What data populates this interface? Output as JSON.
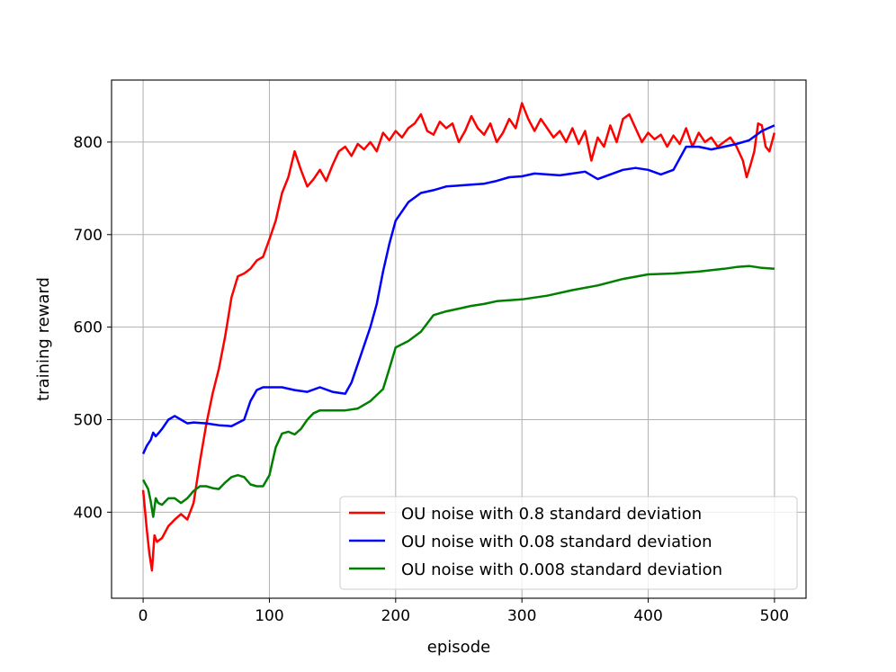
{
  "chart_data": {
    "type": "line",
    "xlabel": "episode",
    "ylabel": "training reward",
    "xlim": [
      -25,
      525
    ],
    "ylim": [
      307,
      867
    ],
    "xticks": [
      "0",
      "100",
      "200",
      "300",
      "400",
      "500"
    ],
    "yticks": [
      "400",
      "500",
      "600",
      "700",
      "800"
    ],
    "grid": true,
    "legend_position": "lower-right",
    "series": [
      {
        "name": "OU noise with 0.8 standard deviation",
        "color": "#ff0000",
        "x": [
          0,
          3,
          5,
          7,
          9,
          11,
          15,
          20,
          25,
          30,
          35,
          40,
          45,
          50,
          55,
          60,
          65,
          70,
          75,
          80,
          85,
          90,
          95,
          100,
          105,
          110,
          115,
          120,
          125,
          130,
          135,
          140,
          145,
          150,
          155,
          160,
          165,
          170,
          175,
          180,
          185,
          190,
          195,
          200,
          205,
          210,
          215,
          220,
          225,
          230,
          235,
          240,
          245,
          250,
          255,
          260,
          265,
          270,
          275,
          280,
          285,
          290,
          295,
          300,
          305,
          310,
          315,
          320,
          325,
          330,
          335,
          340,
          345,
          350,
          355,
          360,
          365,
          370,
          375,
          380,
          385,
          390,
          395,
          400,
          405,
          410,
          415,
          420,
          425,
          430,
          435,
          440,
          445,
          450,
          455,
          460,
          465,
          470,
          475,
          478,
          481,
          484,
          487,
          490,
          493,
          496,
          500
        ],
        "values": [
          424,
          380,
          355,
          337,
          375,
          368,
          372,
          385,
          392,
          398,
          392,
          410,
          455,
          495,
          528,
          555,
          590,
          632,
          655,
          658,
          663,
          672,
          676,
          695,
          715,
          745,
          762,
          790,
          770,
          752,
          760,
          770,
          758,
          775,
          790,
          795,
          785,
          798,
          792,
          800,
          790,
          810,
          802,
          812,
          805,
          815,
          820,
          830,
          812,
          808,
          822,
          815,
          820,
          800,
          812,
          828,
          815,
          808,
          820,
          800,
          810,
          825,
          815,
          842,
          825,
          812,
          825,
          815,
          805,
          812,
          800,
          815,
          798,
          812,
          780,
          805,
          795,
          818,
          800,
          825,
          830,
          815,
          800,
          810,
          803,
          808,
          795,
          807,
          798,
          815,
          795,
          810,
          800,
          805,
          795,
          800,
          805,
          795,
          780,
          762,
          775,
          790,
          820,
          818,
          795,
          790,
          810
        ]
      },
      {
        "name": "OU noise with 0.08 standard deviation",
        "color": "#0000ff",
        "x": [
          0,
          3,
          6,
          8,
          10,
          12,
          15,
          20,
          25,
          30,
          35,
          40,
          50,
          60,
          70,
          80,
          85,
          90,
          95,
          100,
          110,
          120,
          130,
          140,
          150,
          160,
          165,
          170,
          180,
          185,
          190,
          195,
          200,
          210,
          220,
          230,
          240,
          250,
          260,
          270,
          280,
          290,
          300,
          310,
          320,
          330,
          340,
          350,
          360,
          370,
          380,
          390,
          400,
          410,
          420,
          430,
          440,
          450,
          460,
          470,
          480,
          490,
          500
        ],
        "values": [
          463,
          472,
          478,
          486,
          482,
          485,
          490,
          500,
          504,
          500,
          496,
          497,
          496,
          494,
          493,
          500,
          520,
          532,
          535,
          535,
          535,
          532,
          530,
          535,
          530,
          528,
          540,
          560,
          600,
          625,
          660,
          690,
          715,
          735,
          745,
          748,
          752,
          753,
          754,
          755,
          758,
          762,
          763,
          766,
          765,
          764,
          766,
          768,
          760,
          765,
          770,
          772,
          770,
          765,
          770,
          795,
          795,
          792,
          795,
          798,
          802,
          812,
          818
        ]
      },
      {
        "name": "OU noise with 0.008 standard deviation",
        "color": "#008000",
        "x": [
          0,
          2,
          4,
          6,
          8,
          10,
          12,
          15,
          20,
          25,
          30,
          35,
          40,
          45,
          50,
          55,
          60,
          65,
          70,
          75,
          80,
          85,
          90,
          95,
          100,
          105,
          110,
          115,
          120,
          125,
          130,
          135,
          140,
          145,
          150,
          160,
          170,
          180,
          190,
          195,
          200,
          210,
          220,
          230,
          240,
          250,
          260,
          270,
          280,
          290,
          300,
          320,
          340,
          360,
          380,
          400,
          420,
          440,
          460,
          470,
          480,
          490,
          500
        ],
        "values": [
          435,
          430,
          425,
          412,
          395,
          415,
          410,
          408,
          415,
          415,
          410,
          415,
          423,
          428,
          428,
          426,
          425,
          432,
          438,
          440,
          438,
          430,
          428,
          428,
          440,
          470,
          485,
          487,
          484,
          490,
          500,
          507,
          510,
          510,
          510,
          510,
          512,
          520,
          533,
          555,
          578,
          585,
          595,
          613,
          617,
          620,
          623,
          625,
          628,
          629,
          630,
          634,
          640,
          645,
          652,
          657,
          658,
          660,
          663,
          665,
          666,
          664,
          663
        ]
      }
    ]
  }
}
